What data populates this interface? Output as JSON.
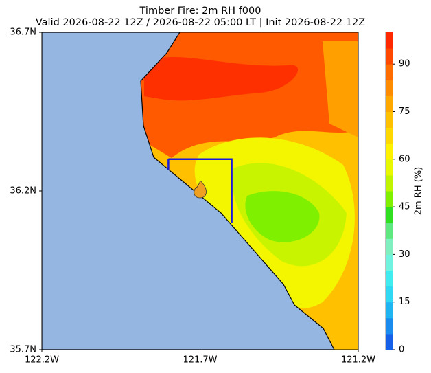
{
  "chart_data": {
    "type": "map",
    "title": "Timber Fire: 2m RH f000",
    "subtitle": "Valid 2026-08-22 12Z / 2026-08-22 05:00 LT | Init 2026-08-22 12Z",
    "xlim": [
      -122.2,
      -121.2
    ],
    "xticks": [
      {
        "value": -122.2,
        "label": "122.2W"
      },
      {
        "value": -121.7,
        "label": "121.7W"
      },
      {
        "value": -121.2,
        "label": "121.2W"
      }
    ],
    "ylim": [
      35.7,
      36.7
    ],
    "yticks": [
      {
        "value": 35.7,
        "label": "35.7N"
      },
      {
        "value": 36.2,
        "label": "36.2N"
      },
      {
        "value": 36.7,
        "label": "36.7N"
      }
    ],
    "box": {
      "lon": [
        -121.8,
        -121.6
      ],
      "lat": [
        36.1,
        36.3
      ],
      "color": "#1a1adc"
    },
    "marker": {
      "lon": -121.7,
      "lat": 36.2,
      "color": "#f0a020"
    },
    "colorbar": {
      "label": "2m RH (%)",
      "lim": [
        0,
        100
      ],
      "ticks": [
        0,
        15,
        30,
        45,
        60,
        75,
        90
      ],
      "levels": [
        0,
        5,
        10,
        15,
        20,
        25,
        30,
        35,
        40,
        45,
        50,
        55,
        60,
        65,
        70,
        75,
        80,
        85,
        90,
        95,
        100
      ],
      "colors": [
        "#1560e6",
        "#1a8cf0",
        "#20b4f0",
        "#30d8f4",
        "#40ecf0",
        "#70f4e0",
        "#80f0c0",
        "#60e880",
        "#30e020",
        "#80f000",
        "#c0f400",
        "#e8f800",
        "#fff200",
        "#ffd800",
        "#ffc000",
        "#ffa800",
        "#ff8c00",
        "#ff6c00",
        "#ff4800",
        "#ff2800"
      ]
    }
  }
}
